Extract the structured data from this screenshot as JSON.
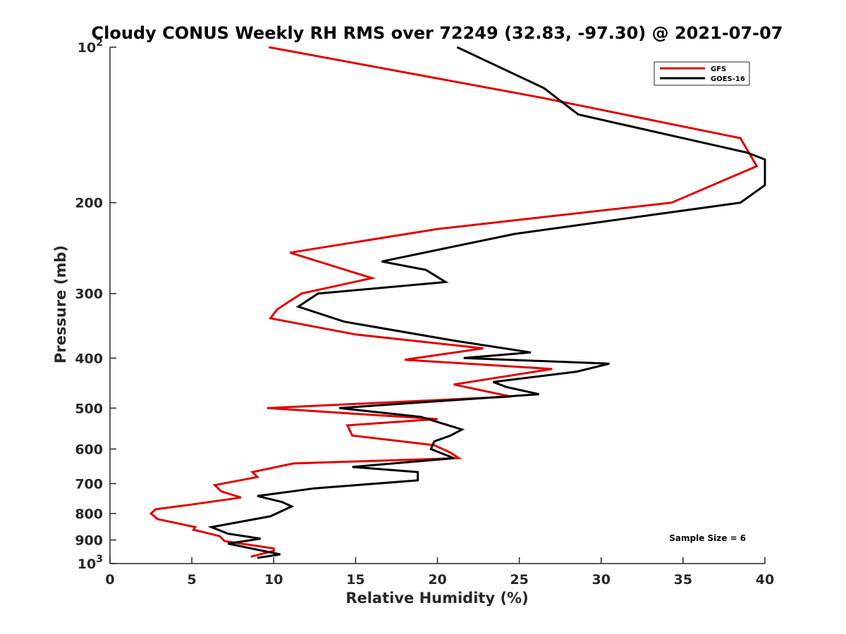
{
  "chart_data": {
    "type": "line",
    "title": "Cloudy CONUS Weekly RH RMS over 72249 (32.83, -97.30) @ 2021-07-07",
    "xlabel": "Relative Humidity (%)",
    "ylabel": "Pressure (mb)",
    "xlim": [
      0,
      40
    ],
    "ylim": [
      100,
      1000
    ],
    "yscale": "log",
    "y_reversed": true,
    "grid": false,
    "legend_position": "top-right",
    "xticks": [
      "0",
      "5",
      "10",
      "15",
      "20",
      "25",
      "30",
      "35",
      "40"
    ],
    "yticks": [
      {
        "value": 100,
        "base": "10",
        "exp": "2"
      },
      {
        "value": 200,
        "label": "200"
      },
      {
        "value": 300,
        "label": "300"
      },
      {
        "value": 400,
        "label": "400"
      },
      {
        "value": 500,
        "label": "500"
      },
      {
        "value": 600,
        "label": "600"
      },
      {
        "value": 700,
        "label": "700"
      },
      {
        "value": 800,
        "label": "800"
      },
      {
        "value": 900,
        "label": "900"
      },
      {
        "value": 1000,
        "base": "10",
        "exp": "3"
      }
    ],
    "series": [
      {
        "name": "GFS",
        "color": "#e00000",
        "points": [
          [
            9.7,
            100
          ],
          [
            26.2,
            125
          ],
          [
            38.5,
            150
          ],
          [
            39.5,
            170
          ],
          [
            34.3,
            200
          ],
          [
            20.0,
            225
          ],
          [
            11.0,
            250
          ],
          [
            16.0,
            280
          ],
          [
            11.7,
            300
          ],
          [
            10.2,
            322
          ],
          [
            9.8,
            335
          ],
          [
            15.0,
            360
          ],
          [
            22.8,
            383
          ],
          [
            18.0,
            403
          ],
          [
            27.0,
            420
          ],
          [
            21.0,
            450
          ],
          [
            24.5,
            475
          ],
          [
            9.6,
            500
          ],
          [
            20.0,
            525
          ],
          [
            14.5,
            540
          ],
          [
            14.8,
            565
          ],
          [
            19.8,
            590
          ],
          [
            20.8,
            610
          ],
          [
            21.3,
            625
          ],
          [
            11.2,
            640
          ],
          [
            8.7,
            665
          ],
          [
            9.0,
            680
          ],
          [
            6.4,
            705
          ],
          [
            6.8,
            725
          ],
          [
            8.0,
            745
          ],
          [
            4.8,
            770
          ],
          [
            2.8,
            785
          ],
          [
            2.5,
            800
          ],
          [
            2.9,
            820
          ],
          [
            5.2,
            850
          ],
          [
            5.1,
            860
          ],
          [
            6.7,
            885
          ],
          [
            7.0,
            905
          ],
          [
            10.0,
            935
          ],
          [
            10.0,
            945
          ],
          [
            8.6,
            970
          ]
        ]
      },
      {
        "name": "GOES-16",
        "color": "#000000",
        "points": [
          [
            21.2,
            100
          ],
          [
            26.5,
            120
          ],
          [
            28.6,
            135
          ],
          [
            38.9,
            160
          ],
          [
            40.0,
            165
          ],
          [
            40.0,
            185
          ],
          [
            38.5,
            200
          ],
          [
            24.7,
            230
          ],
          [
            16.6,
            260
          ],
          [
            19.3,
            270
          ],
          [
            20.5,
            285
          ],
          [
            12.7,
            300
          ],
          [
            11.5,
            318
          ],
          [
            14.3,
            340
          ],
          [
            21.0,
            370
          ],
          [
            25.7,
            390
          ],
          [
            21.6,
            400
          ],
          [
            30.5,
            410
          ],
          [
            28.5,
            425
          ],
          [
            23.4,
            445
          ],
          [
            24.2,
            455
          ],
          [
            26.2,
            470
          ],
          [
            14.0,
            500
          ],
          [
            19.0,
            520
          ],
          [
            21.5,
            550
          ],
          [
            20.8,
            565
          ],
          [
            19.8,
            580
          ],
          [
            19.6,
            600
          ],
          [
            21.0,
            625
          ],
          [
            14.8,
            650
          ],
          [
            18.8,
            665
          ],
          [
            18.8,
            690
          ],
          [
            12.5,
            715
          ],
          [
            9.0,
            740
          ],
          [
            10.5,
            760
          ],
          [
            11.1,
            775
          ],
          [
            9.8,
            810
          ],
          [
            6.2,
            850
          ],
          [
            7.2,
            875
          ],
          [
            9.2,
            895
          ],
          [
            7.2,
            915
          ],
          [
            10.4,
            960
          ],
          [
            9.0,
            975
          ]
        ]
      }
    ],
    "annotations": [
      {
        "text": "Sample Size = 6",
        "x": 36.5,
        "y": 905
      }
    ]
  }
}
